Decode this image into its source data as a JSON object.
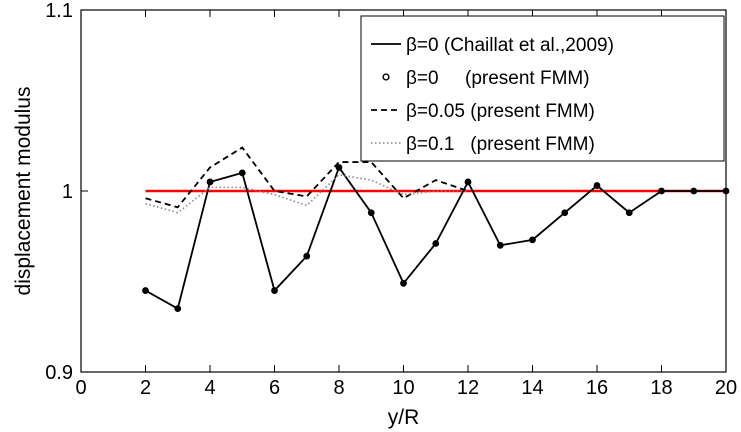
{
  "chart_data": {
    "type": "line",
    "xlabel": "y/R",
    "ylabel": "displacement modulus",
    "xlim": [
      0,
      20
    ],
    "ylim": [
      0.9,
      1.1
    ],
    "xticks": [
      0,
      2,
      4,
      6,
      8,
      10,
      12,
      14,
      16,
      18,
      20
    ],
    "xtick_labels": [
      "0",
      "2",
      "4",
      "6",
      "8",
      "10",
      "12",
      "14",
      "16",
      "18",
      "20"
    ],
    "yticks": [
      0.9,
      1,
      1.1
    ],
    "ytick_labels": [
      "0.9",
      "1",
      "1.1"
    ],
    "grid": false,
    "legend_position": "top-right",
    "reference_line": {
      "y": 1,
      "color": "#ff0000"
    },
    "series": [
      {
        "name": "β=0 (Chaillat et al.,2009)",
        "style": "solid",
        "color": "#000000",
        "x": [
          2,
          3,
          4,
          5,
          6,
          7,
          8,
          9,
          10,
          11,
          12,
          13,
          14,
          15,
          16,
          17,
          18,
          19,
          20
        ],
        "y": [
          0.945,
          0.935,
          1.005,
          1.01,
          0.945,
          0.964,
          1.013,
          0.988,
          0.949,
          0.971,
          1.005,
          0.97,
          0.973,
          0.988,
          1.003,
          0.988,
          1.0,
          1.0,
          1.0
        ]
      },
      {
        "name": "β=0     (present FMM)",
        "style": "markers",
        "color": "#000000",
        "x": [
          2,
          3,
          4,
          5,
          6,
          7,
          8,
          9,
          10,
          11,
          12,
          13,
          14,
          15,
          16,
          17,
          18,
          19,
          20
        ],
        "y": [
          0.945,
          0.935,
          1.005,
          1.01,
          0.945,
          0.964,
          1.013,
          0.988,
          0.949,
          0.971,
          1.005,
          0.97,
          0.973,
          0.988,
          1.003,
          0.988,
          1.0,
          1.0,
          1.0
        ]
      },
      {
        "name": "β=0.05 (present FMM)",
        "style": "dashed",
        "color": "#000000",
        "x": [
          2,
          3,
          4,
          5,
          6,
          7,
          8,
          9,
          10,
          11,
          12
        ],
        "y": [
          0.996,
          0.991,
          1.013,
          1.024,
          1.0,
          0.997,
          1.016,
          1.016,
          0.996,
          1.006,
          1.0
        ]
      },
      {
        "name": "β=0.1   (present FMM)",
        "style": "dotted",
        "color": "#888888",
        "x": [
          2,
          3,
          4,
          5,
          6,
          7,
          8,
          9,
          10,
          11,
          12
        ],
        "y": [
          0.993,
          0.988,
          1.002,
          1.002,
          0.998,
          0.992,
          1.009,
          1.006,
          0.998,
          1.0,
          1.0
        ]
      }
    ]
  }
}
